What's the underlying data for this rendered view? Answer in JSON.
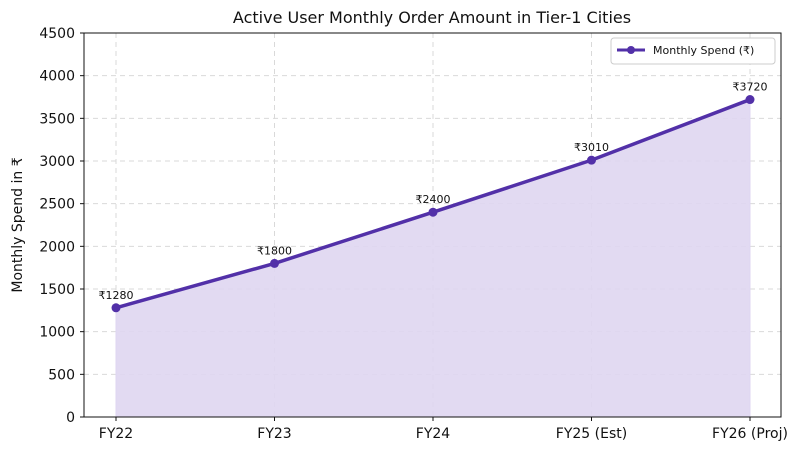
{
  "chart_data": {
    "type": "area",
    "title": "Active User Monthly Order Amount in Tier-1 Cities",
    "xlabel": "",
    "ylabel": "Monthly Spend in ₹",
    "categories": [
      "FY22",
      "FY23",
      "FY24",
      "FY25 (Est)",
      "FY26 (Proj)"
    ],
    "series": [
      {
        "name": "Monthly Spend (₹)",
        "values": [
          1280,
          1800,
          2400,
          3010,
          3720
        ],
        "data_labels": [
          "₹1280",
          "₹1800",
          "₹2400",
          "₹3010",
          "₹3720"
        ],
        "color": "#5230a8",
        "fill_color": "#dfd6f1"
      }
    ],
    "ylim": [
      0,
      4500
    ],
    "yticks": [
      0,
      500,
      1000,
      1500,
      2000,
      2500,
      3000,
      3500,
      4000,
      4500
    ],
    "grid": true,
    "legend_position": "top-right"
  }
}
